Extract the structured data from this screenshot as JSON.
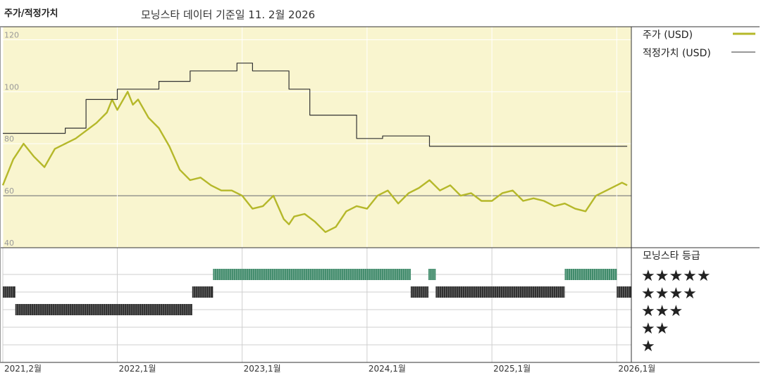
{
  "header": {
    "title": "주가/적정가치",
    "subtitle": "모닝스타 데이터 기준일 11. 2월 2026"
  },
  "colors": {
    "price": "#b5b82a",
    "fair": "#333333",
    "panel_bg": "#f9f5cf",
    "rating_green": "#3f8a6a",
    "rating_black": "#2b2b2b"
  },
  "legend": {
    "price_label": "주가 (USD)",
    "fair_label": "적정가치 (USD)",
    "rating_title": "모닝스타 등급",
    "stars": [
      "★★★★★",
      "★★★★",
      "★★★",
      "★★",
      "★"
    ]
  },
  "chart_data": {
    "type": "line",
    "title": "주가/적정가치",
    "ylim": [
      40,
      125
    ],
    "yticks": [
      "120",
      "100",
      "80",
      "60",
      "40"
    ],
    "ytick_values": [
      120,
      100,
      80,
      60,
      40
    ],
    "xlim": [
      0,
      60.4
    ],
    "xticks": [
      "2021,2월",
      "2022,1월",
      "2023,1월",
      "2024,1월",
      "2025,1월",
      "2026,1월"
    ],
    "xtick_values": [
      0,
      11,
      23,
      35,
      47,
      59
    ],
    "series": [
      {
        "name": "주가 (USD)",
        "x": [
          0,
          1,
          2,
          3,
          4,
          5,
          6,
          7,
          8,
          9,
          10,
          10.5,
          11,
          12,
          12.5,
          13,
          14,
          15,
          16,
          17,
          18,
          19,
          20,
          21,
          22,
          23,
          24,
          25,
          26,
          27,
          27.5,
          28,
          29,
          30,
          31,
          32,
          33,
          34,
          35,
          36,
          37,
          38,
          39,
          40,
          41,
          42,
          43,
          44,
          45,
          46,
          47,
          48,
          49,
          50,
          51,
          52,
          53,
          54,
          55,
          56,
          57,
          58,
          59,
          59.5,
          60
        ],
        "y": [
          64,
          74,
          80,
          75,
          71,
          78,
          80,
          82,
          85,
          88,
          92,
          97,
          93,
          100,
          95,
          97,
          90,
          86,
          79,
          70,
          66,
          67,
          64,
          62,
          62,
          60,
          55,
          56,
          60,
          51,
          49,
          52,
          53,
          50,
          46,
          48,
          54,
          56,
          55,
          60,
          62,
          57,
          61,
          63,
          66,
          62,
          64,
          60,
          61,
          58,
          58,
          61,
          62,
          58,
          59,
          58,
          56,
          57,
          55,
          54,
          60,
          62,
          64,
          65,
          64
        ]
      },
      {
        "name": "적정가치 (USD)",
        "x": [
          0,
          6,
          6,
          8,
          8,
          11,
          11,
          15,
          15,
          18,
          18,
          22.5,
          22.5,
          24,
          24,
          27.5,
          27.5,
          29.5,
          29.5,
          34,
          34,
          36.5,
          36.5,
          41,
          41,
          60
        ],
        "y": [
          84,
          84,
          86,
          86,
          97,
          97,
          101,
          101,
          104,
          104,
          108,
          108,
          111,
          111,
          108,
          108,
          101,
          101,
          91,
          91,
          82,
          82,
          83,
          83,
          79,
          79
        ]
      }
    ],
    "rating_rows": [
      5,
      4,
      3,
      2,
      1
    ],
    "ratings": [
      {
        "from": 0,
        "to": 1.2,
        "stars": 4
      },
      {
        "from": 1.2,
        "to": 18.2,
        "stars": 3
      },
      {
        "from": 18.2,
        "to": 20.2,
        "stars": 4
      },
      {
        "from": 20.2,
        "to": 39.2,
        "stars": 5
      },
      {
        "from": 39.2,
        "to": 40.9,
        "stars": 4
      },
      {
        "from": 40.9,
        "to": 41.6,
        "stars": 5
      },
      {
        "from": 41.6,
        "to": 54.0,
        "stars": 4
      },
      {
        "from": 54.0,
        "to": 59.0,
        "stars": 5
      },
      {
        "from": 59.0,
        "to": 61.0,
        "stars": 4
      }
    ]
  }
}
